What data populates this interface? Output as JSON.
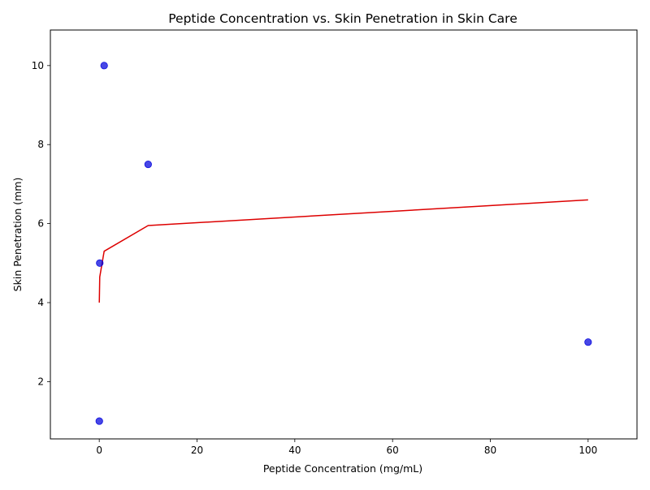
{
  "chart_data": {
    "type": "scatter",
    "title": "Peptide Concentration vs. Skin Penetration in Skin Care",
    "xlabel": "Peptide Concentration (mg/mL)",
    "ylabel": "Skin Penetration (mm)",
    "xlim": [
      -10,
      110
    ],
    "ylim": [
      0.55,
      10.9
    ],
    "xticks": [
      0,
      20,
      40,
      60,
      80,
      100
    ],
    "yticks": [
      2,
      4,
      6,
      8,
      10
    ],
    "grid": false,
    "series": [
      {
        "kind": "scatter",
        "color": "#0000dd",
        "points": [
          {
            "x": 0.01,
            "y": 1.0
          },
          {
            "x": 0.1,
            "y": 5.0
          },
          {
            "x": 1.0,
            "y": 10.0
          },
          {
            "x": 10.0,
            "y": 7.5
          },
          {
            "x": 100.0,
            "y": 3.0
          }
        ]
      },
      {
        "kind": "line",
        "color": "#dd0000",
        "points": [
          {
            "x": 0.01,
            "y": 4.0
          },
          {
            "x": 0.1,
            "y": 4.65
          },
          {
            "x": 1.0,
            "y": 5.3
          },
          {
            "x": 10.0,
            "y": 5.95
          },
          {
            "x": 100.0,
            "y": 6.6
          }
        ]
      }
    ]
  }
}
